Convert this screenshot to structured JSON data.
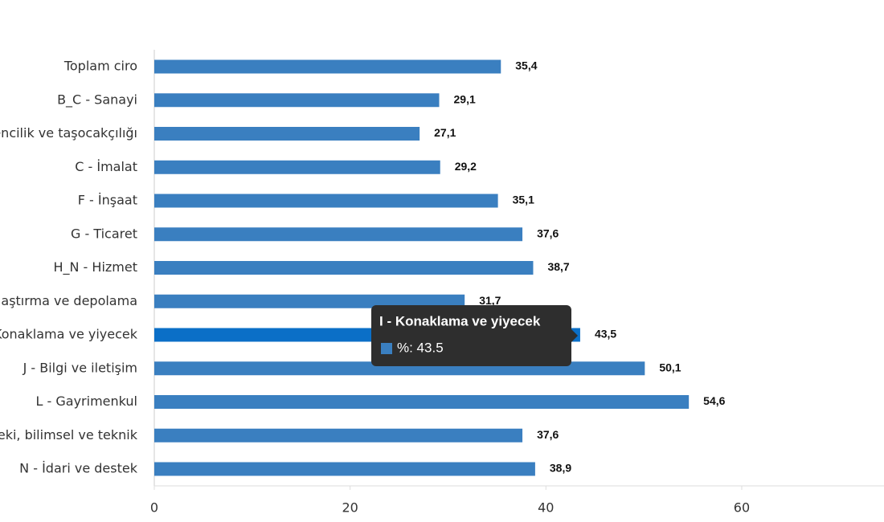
{
  "chart_data": {
    "type": "bar",
    "orientation": "horizontal",
    "categories": [
      "Toplam ciro",
      "B_C - Sanayi",
      "encilik ve taşocakçılığı",
      "C - İmalat",
      "F - İnşaat",
      "G - Ticaret",
      "H_N - Hizmet",
      "laştırma ve depolama",
      "Konaklama ve yiyecek",
      "J - Bilgi ve iletişim",
      "L - Gayrimenkul",
      "eki, bilimsel ve teknik",
      "N - İdari ve destek"
    ],
    "series": [
      {
        "name": "%",
        "color": "#3a7fc0",
        "highlight_color": "#0b6fc7",
        "highlight": 8,
        "values": [
          35.4,
          29.1,
          27.1,
          29.2,
          35.1,
          37.6,
          38.7,
          31.7,
          43.5,
          50.1,
          54.6,
          37.6,
          38.9
        ],
        "value_labels": [
          "35,4",
          "29,1",
          "27,1",
          "29,2",
          "35,1",
          "37,6",
          "38,7",
          "31,7",
          "43,5",
          "50,1",
          "54,6",
          "37,6",
          "38,9"
        ]
      }
    ],
    "xlim": [
      0,
      75
    ],
    "xticks": [
      0,
      20,
      40,
      60
    ],
    "tooltip": {
      "title": "I - Konaklama ve yiyecek",
      "label": "%: 43.5"
    }
  }
}
